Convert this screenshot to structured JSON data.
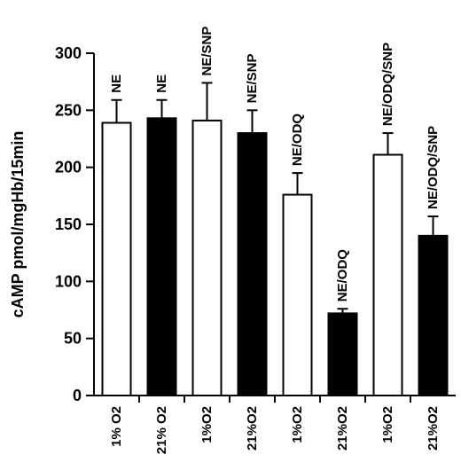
{
  "chart_data": {
    "type": "bar",
    "ylabel": "cAMP pmol/mgHb/15min",
    "ylim": [
      0,
      300
    ],
    "yticks": [
      0,
      50,
      100,
      150,
      200,
      250,
      300
    ],
    "grid": false,
    "legend": "none",
    "categories": [
      "1% O2",
      "21% O2",
      "1%O2",
      "21%O2",
      "1%O2",
      "21%O2",
      "1%O2",
      "21%O2"
    ],
    "values": [
      239,
      243,
      241,
      230,
      176,
      72,
      211,
      140
    ],
    "errors": [
      20,
      16,
      33,
      20,
      19,
      4,
      19,
      17
    ],
    "bar_labels": [
      "NE",
      "NE",
      "NE/SNP",
      "NE/SNP",
      "NE/ODQ",
      "NE/ODQ",
      "NE/ODQ/SNP",
      "NE/ODQ/SNP"
    ],
    "fills": [
      "#ffffff",
      "#000000",
      "#ffffff",
      "#000000",
      "#ffffff",
      "#000000",
      "#ffffff",
      "#000000"
    ]
  }
}
